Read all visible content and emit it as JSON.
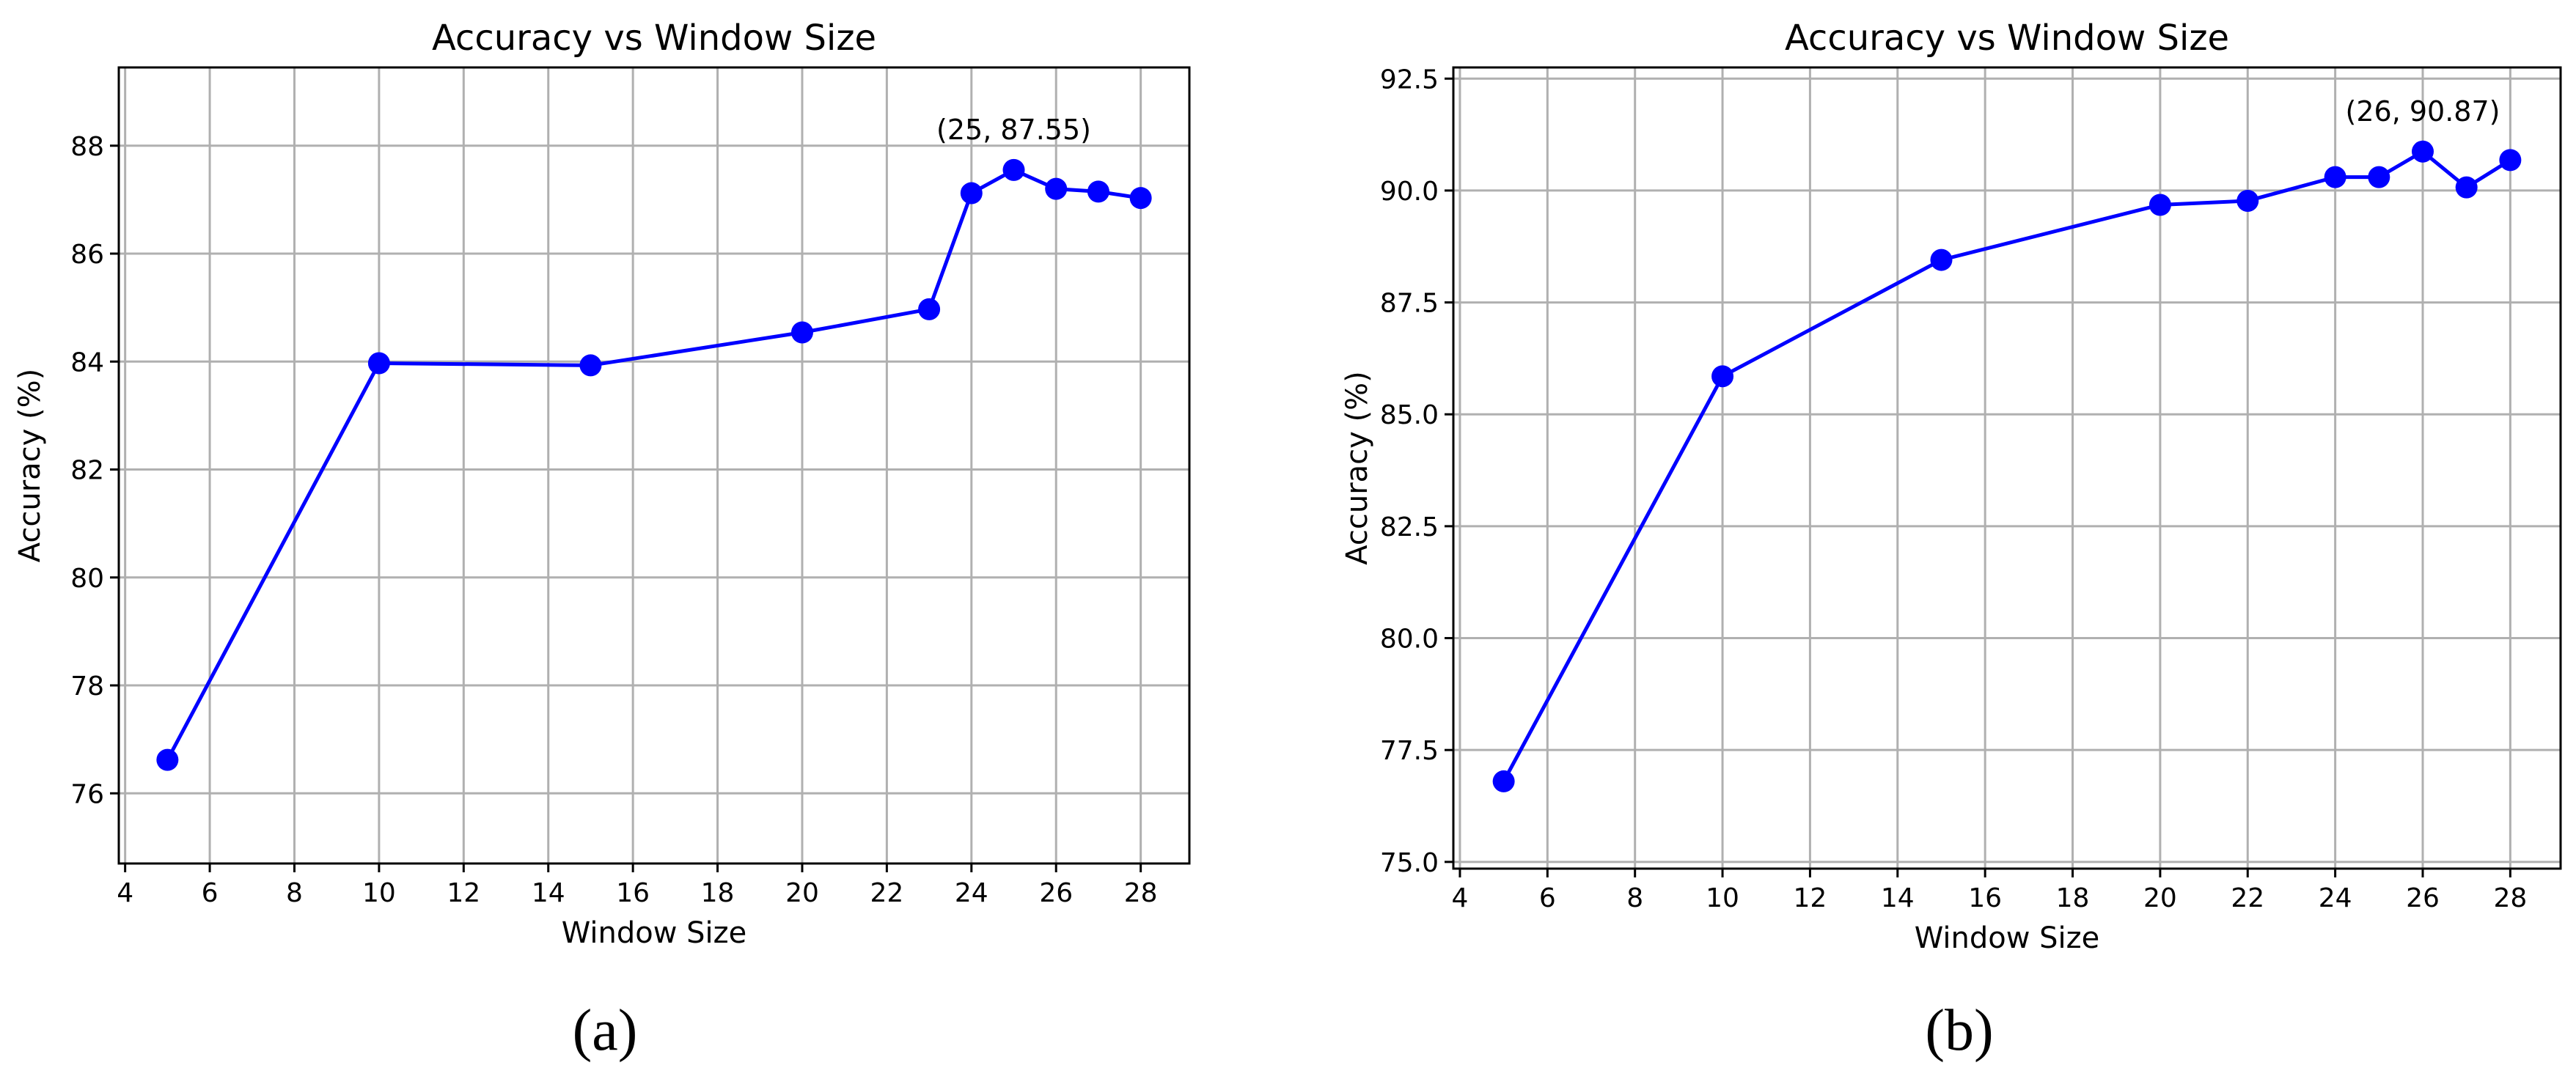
{
  "chart_data": [
    {
      "type": "line",
      "title": "Accuracy vs Window Size",
      "xlabel": "Window Size",
      "ylabel": "Accuracy (%)",
      "xlim": [
        3.85,
        29.15
      ],
      "ylim": [
        74.7,
        89.45
      ],
      "xticks": [
        "4",
        "6",
        "8",
        "10",
        "12",
        "14",
        "16",
        "18",
        "20",
        "22",
        "24",
        "26",
        "28"
      ],
      "yticks": [
        "76",
        "78",
        "80",
        "82",
        "84",
        "86",
        "88"
      ],
      "grid": true,
      "color": "#0000ff",
      "series": [
        {
          "x": [
            5,
            10,
            15,
            20,
            23,
            24,
            25,
            26,
            27,
            28
          ],
          "values": [
            76.62,
            83.97,
            83.93,
            84.54,
            84.97,
            87.12,
            87.55,
            87.2,
            87.15,
            87.03
          ]
        }
      ],
      "annotation": {
        "text": "(25, 87.55)",
        "x": 25,
        "y": 87.55
      },
      "caption": "(a)"
    },
    {
      "type": "line",
      "title": "Accuracy vs Window Size",
      "xlabel": "Window Size",
      "ylabel": "Accuracy (%)",
      "xlim": [
        3.85,
        29.15
      ],
      "ylim": [
        74.85,
        92.75
      ],
      "xticks": [
        "4",
        "6",
        "8",
        "10",
        "12",
        "14",
        "16",
        "18",
        "20",
        "22",
        "24",
        "26",
        "28"
      ],
      "yticks": [
        "75.0",
        "77.5",
        "80.0",
        "82.5",
        "85.0",
        "87.5",
        "90.0",
        "92.5"
      ],
      "grid": true,
      "color": "#0000ff",
      "series": [
        {
          "x": [
            5,
            10,
            15,
            20,
            22,
            24,
            25,
            26,
            27,
            28
          ],
          "values": [
            76.8,
            85.85,
            88.45,
            89.68,
            89.77,
            90.3,
            90.3,
            90.87,
            90.07,
            90.68
          ]
        }
      ],
      "annotation": {
        "text": "(26, 90.87)",
        "x": 26,
        "y": 90.87
      },
      "caption": "(b)"
    }
  ]
}
